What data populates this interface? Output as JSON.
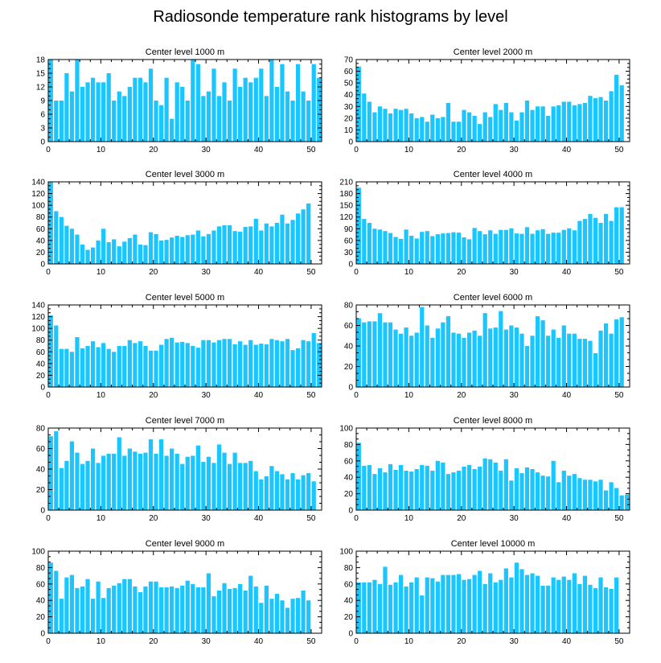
{
  "title": "Radiosonde temperature rank histograms by level",
  "colors": {
    "bar": "#1ac6ff",
    "axis": "#000000",
    "background": "#ffffff"
  },
  "chart_data": [
    {
      "type": "bar",
      "title": "Center level 1000 m",
      "xlabel": "",
      "ylabel": "",
      "xlim": [
        0,
        52
      ],
      "xticks": [
        0,
        10,
        20,
        30,
        40,
        50
      ],
      "ylim": [
        0,
        18
      ],
      "yticks": [
        0,
        3,
        6,
        9,
        12,
        15,
        18
      ],
      "values": [
        18,
        9,
        9,
        15,
        11,
        18,
        12,
        13,
        14,
        13,
        13,
        15,
        9,
        11,
        10,
        12,
        14,
        14,
        13,
        16,
        9,
        8,
        14,
        5,
        13,
        12,
        9,
        18,
        17,
        10,
        11,
        16,
        10,
        13,
        9,
        16,
        12,
        14,
        13,
        14,
        16,
        10,
        18,
        12,
        17,
        11,
        9,
        17,
        11,
        9,
        17,
        14
      ]
    },
    {
      "type": "bar",
      "title": "Center level 2000 m",
      "xlabel": "",
      "ylabel": "",
      "xlim": [
        0,
        52
      ],
      "xticks": [
        0,
        10,
        20,
        30,
        40,
        50
      ],
      "ylim": [
        0,
        70
      ],
      "yticks": [
        0,
        10,
        20,
        30,
        40,
        50,
        60,
        70
      ],
      "values": [
        64,
        41,
        34,
        25,
        30,
        28,
        24,
        28,
        27,
        28,
        24,
        20,
        21,
        17,
        23,
        20,
        21,
        33,
        17,
        17,
        27,
        25,
        22,
        15,
        25,
        21,
        32,
        27,
        33,
        25,
        18,
        25,
        35,
        27,
        30,
        30,
        22,
        30,
        31,
        34,
        34,
        31,
        32,
        33,
        39,
        37,
        38,
        35,
        43,
        57,
        48
      ]
    },
    {
      "type": "bar",
      "title": "Center level 3000 m",
      "xlabel": "",
      "ylabel": "",
      "xlim": [
        0,
        52
      ],
      "xticks": [
        0,
        10,
        20,
        30,
        40,
        50
      ],
      "ylim": [
        0,
        140
      ],
      "yticks": [
        0,
        20,
        40,
        60,
        80,
        100,
        120,
        140
      ],
      "values": [
        140,
        90,
        80,
        65,
        60,
        50,
        33,
        24,
        28,
        40,
        60,
        37,
        42,
        30,
        38,
        44,
        50,
        33,
        32,
        54,
        51,
        40,
        41,
        45,
        48,
        46,
        49,
        50,
        57,
        47,
        51,
        57,
        64,
        66,
        66,
        56,
        55,
        63,
        64,
        77,
        57,
        69,
        64,
        70,
        84,
        69,
        75,
        86,
        93,
        103
      ]
    },
    {
      "type": "bar",
      "title": "Center level 4000 m",
      "xlabel": "",
      "ylabel": "",
      "xlim": [
        0,
        52
      ],
      "xticks": [
        0,
        10,
        20,
        30,
        40,
        50
      ],
      "ylim": [
        0,
        210
      ],
      "yticks": [
        0,
        30,
        60,
        90,
        120,
        150,
        180,
        210
      ],
      "values": [
        195,
        115,
        105,
        90,
        88,
        84,
        79,
        69,
        64,
        88,
        72,
        65,
        82,
        84,
        71,
        76,
        78,
        79,
        81,
        80,
        68,
        63,
        92,
        84,
        76,
        86,
        77,
        87,
        87,
        91,
        78,
        77,
        94,
        77,
        86,
        89,
        77,
        80,
        80,
        87,
        91,
        86,
        110,
        115,
        128,
        118,
        105,
        128,
        110,
        145,
        145
      ]
    },
    {
      "type": "bar",
      "title": "Center level 5000 m",
      "xlabel": "",
      "ylabel": "",
      "xlim": [
        0,
        52
      ],
      "xticks": [
        0,
        10,
        20,
        30,
        40,
        50
      ],
      "ylim": [
        0,
        140
      ],
      "yticks": [
        0,
        20,
        40,
        60,
        80,
        100,
        120,
        140
      ],
      "values": [
        122,
        105,
        65,
        65,
        60,
        85,
        66,
        70,
        78,
        68,
        75,
        65,
        60,
        70,
        70,
        80,
        75,
        78,
        70,
        62,
        62,
        72,
        82,
        84,
        76,
        77,
        75,
        70,
        67,
        80,
        80,
        76,
        80,
        82,
        82,
        73,
        78,
        72,
        80,
        72,
        74,
        73,
        82,
        80,
        78,
        82,
        63,
        66,
        80,
        78,
        92,
        75
      ]
    },
    {
      "type": "bar",
      "title": "Center level 6000 m",
      "xlabel": "",
      "ylabel": "",
      "xlim": [
        0,
        52
      ],
      "xticks": [
        0,
        10,
        20,
        30,
        40,
        50
      ],
      "ylim": [
        0,
        80
      ],
      "yticks": [
        0,
        20,
        40,
        60,
        80
      ],
      "values": [
        67,
        63,
        64,
        64,
        72,
        63,
        63,
        56,
        52,
        58,
        50,
        53,
        78,
        60,
        48,
        57,
        63,
        69,
        53,
        52,
        48,
        53,
        55,
        50,
        72,
        57,
        58,
        74,
        56,
        60,
        58,
        52,
        40,
        50,
        69,
        65,
        50,
        56,
        48,
        60,
        52,
        52,
        47,
        47,
        45,
        33,
        55,
        62,
        52,
        66,
        68
      ]
    },
    {
      "type": "bar",
      "title": "Center level 7000 m",
      "xlabel": "",
      "ylabel": "",
      "xlim": [
        0,
        52
      ],
      "xticks": [
        0,
        10,
        20,
        30,
        40,
        50
      ],
      "ylim": [
        0,
        80
      ],
      "yticks": [
        0,
        20,
        40,
        60,
        80
      ],
      "values": [
        72,
        77,
        41,
        48,
        67,
        56,
        45,
        48,
        60,
        46,
        53,
        55,
        55,
        71,
        53,
        60,
        57,
        55,
        56,
        69,
        55,
        69,
        53,
        60,
        55,
        45,
        52,
        53,
        63,
        47,
        52,
        46,
        64,
        56,
        45,
        56,
        46,
        46,
        48,
        38,
        30,
        33,
        43,
        38,
        35,
        30,
        36,
        30,
        34,
        36,
        28
      ]
    },
    {
      "type": "bar",
      "title": "Center level 8000 m",
      "xlabel": "",
      "ylabel": "",
      "xlim": [
        0,
        52
      ],
      "xticks": [
        0,
        10,
        20,
        30,
        40,
        50
      ],
      "ylim": [
        0,
        100
      ],
      "yticks": [
        0,
        20,
        40,
        60,
        80,
        100
      ],
      "values": [
        82,
        54,
        55,
        44,
        51,
        46,
        56,
        49,
        55,
        48,
        47,
        50,
        55,
        54,
        48,
        60,
        58,
        44,
        46,
        48,
        53,
        55,
        50,
        53,
        63,
        62,
        58,
        48,
        62,
        36,
        51,
        45,
        52,
        50,
        46,
        42,
        41,
        60,
        34,
        48,
        42,
        44,
        39,
        37,
        37,
        35,
        37,
        24,
        34,
        27,
        18,
        19
      ]
    },
    {
      "type": "bar",
      "title": "Center level 9000 m",
      "xlabel": "",
      "ylabel": "",
      "xlim": [
        0,
        52
      ],
      "xticks": [
        0,
        10,
        20,
        30,
        40,
        50
      ],
      "ylim": [
        0,
        100
      ],
      "yticks": [
        0,
        20,
        40,
        60,
        80,
        100
      ],
      "values": [
        86,
        76,
        42,
        68,
        71,
        55,
        57,
        66,
        42,
        63,
        43,
        55,
        58,
        61,
        66,
        66,
        57,
        50,
        57,
        63,
        63,
        56,
        56,
        57,
        55,
        58,
        64,
        60,
        56,
        56,
        73,
        45,
        52,
        61,
        54,
        55,
        60,
        52,
        70,
        57,
        37,
        58,
        42,
        48,
        40,
        31,
        42,
        43,
        52,
        40
      ]
    },
    {
      "type": "bar",
      "title": "Center level 10000 m",
      "xlabel": "",
      "ylabel": "",
      "xlim": [
        0,
        52
      ],
      "xticks": [
        0,
        10,
        20,
        30,
        40,
        50
      ],
      "ylim": [
        0,
        100
      ],
      "yticks": [
        0,
        20,
        40,
        60,
        80,
        100
      ],
      "values": [
        62,
        62,
        62,
        65,
        60,
        81,
        59,
        62,
        71,
        57,
        62,
        68,
        46,
        68,
        67,
        63,
        71,
        71,
        71,
        72,
        65,
        66,
        71,
        76,
        60,
        73,
        62,
        65,
        79,
        68,
        86,
        78,
        71,
        73,
        70,
        58,
        58,
        68,
        65,
        69,
        65,
        73,
        60,
        70,
        59,
        55,
        68,
        56,
        54,
        68
      ]
    }
  ]
}
